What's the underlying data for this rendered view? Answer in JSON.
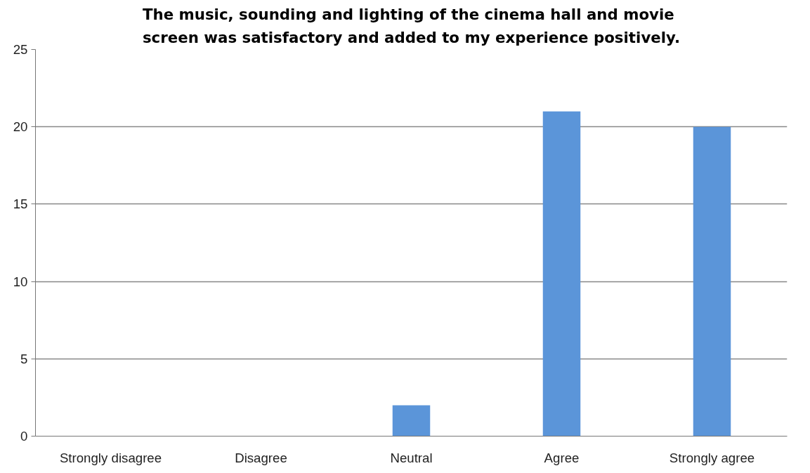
{
  "chart_data": {
    "type": "bar",
    "title": "The music, sounding and lighting of the cinema hall and movie screen was satisfactory and added to my experience positively.",
    "categories": [
      "Strongly disagree",
      "Disagree",
      "Neutral",
      "Agree",
      "Strongly agree"
    ],
    "values": [
      0,
      0,
      2,
      21,
      20
    ],
    "color": "#5b95d9",
    "ylim": [
      0,
      25
    ],
    "yticks": [
      0,
      5,
      10,
      15,
      20,
      25
    ],
    "grid": "y"
  }
}
